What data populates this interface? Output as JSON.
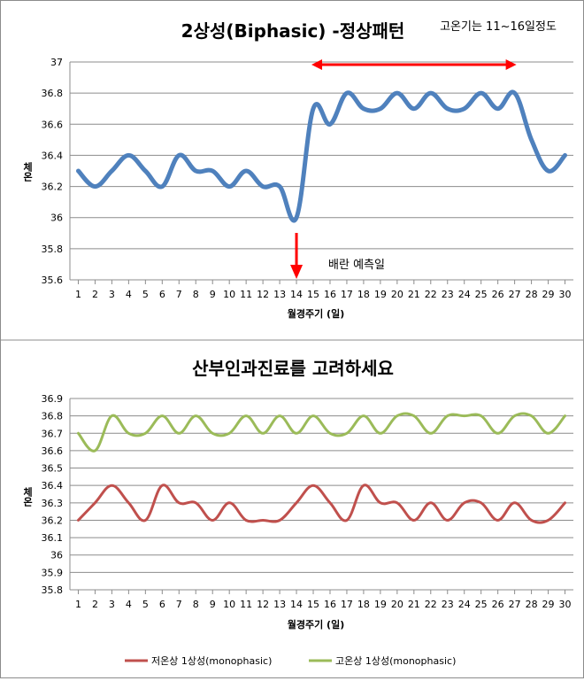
{
  "chart_data": [
    {
      "type": "line",
      "title": "2상성(Biphasic) -정상패턴",
      "xlabel": "월경주기 (일)",
      "ylabel": "체온",
      "ylim": [
        35.6,
        37.0
      ],
      "yticks": [
        "35.6",
        "35.8",
        "36",
        "36.2",
        "36.4",
        "36.6",
        "36.8",
        "37"
      ],
      "x": [
        "1",
        "2",
        "3",
        "4",
        "5",
        "6",
        "7",
        "8",
        "9",
        "10",
        "11",
        "12",
        "13",
        "14",
        "15",
        "16",
        "17",
        "18",
        "19",
        "20",
        "21",
        "22",
        "23",
        "24",
        "25",
        "26",
        "27",
        "28",
        "29",
        "30"
      ],
      "series": [
        {
          "color": "#4f81bd",
          "values": [
            36.3,
            36.2,
            36.3,
            36.4,
            36.3,
            36.2,
            36.4,
            36.3,
            36.3,
            36.2,
            36.3,
            36.2,
            36.2,
            36.0,
            36.7,
            36.6,
            36.8,
            36.7,
            36.7,
            36.8,
            36.7,
            36.8,
            36.7,
            36.7,
            36.8,
            36.7,
            36.8,
            36.5,
            36.3,
            36.4
          ]
        }
      ],
      "annotations": {
        "high_temp_note": "고온기는 11~16일정도",
        "ovulation_label": "배란 예측일",
        "ovulation_day": 14,
        "high_phase_range": [
          15,
          27
        ],
        "arrow_color": "#ff0000"
      },
      "grid": true
    },
    {
      "type": "line",
      "title": "산부인과진료를 고려하세요",
      "xlabel": "월경주기 (일)",
      "ylabel": "체온",
      "ylim": [
        35.8,
        36.9
      ],
      "yticks": [
        "35.8",
        "35.9",
        "36",
        "36.1",
        "36.2",
        "36.3",
        "36.4",
        "36.5",
        "36.6",
        "36.7",
        "36.8",
        "36.9"
      ],
      "x": [
        "1",
        "2",
        "3",
        "4",
        "5",
        "6",
        "7",
        "8",
        "9",
        "10",
        "11",
        "12",
        "13",
        "14",
        "15",
        "16",
        "17",
        "18",
        "19",
        "20",
        "21",
        "22",
        "23",
        "24",
        "25",
        "26",
        "27",
        "28",
        "29",
        "30"
      ],
      "series": [
        {
          "name": "저온상 1상성(monophasic)",
          "color": "#c0504d",
          "values": [
            36.2,
            36.3,
            36.4,
            36.3,
            36.2,
            36.4,
            36.3,
            36.3,
            36.2,
            36.3,
            36.2,
            36.2,
            36.2,
            36.3,
            36.4,
            36.3,
            36.2,
            36.4,
            36.3,
            36.3,
            36.2,
            36.3,
            36.2,
            36.3,
            36.3,
            36.2,
            36.3,
            36.2,
            36.2,
            36.3
          ]
        },
        {
          "name": "고온상 1상성(monophasic)",
          "color": "#9bbb59",
          "values": [
            36.7,
            36.6,
            36.8,
            36.7,
            36.7,
            36.8,
            36.7,
            36.8,
            36.7,
            36.7,
            36.8,
            36.7,
            36.8,
            36.7,
            36.8,
            36.7,
            36.7,
            36.8,
            36.7,
            36.8,
            36.8,
            36.7,
            36.8,
            36.8,
            36.8,
            36.7,
            36.8,
            36.8,
            36.7,
            36.8
          ]
        }
      ],
      "legend": "bottom",
      "grid": true
    }
  ]
}
